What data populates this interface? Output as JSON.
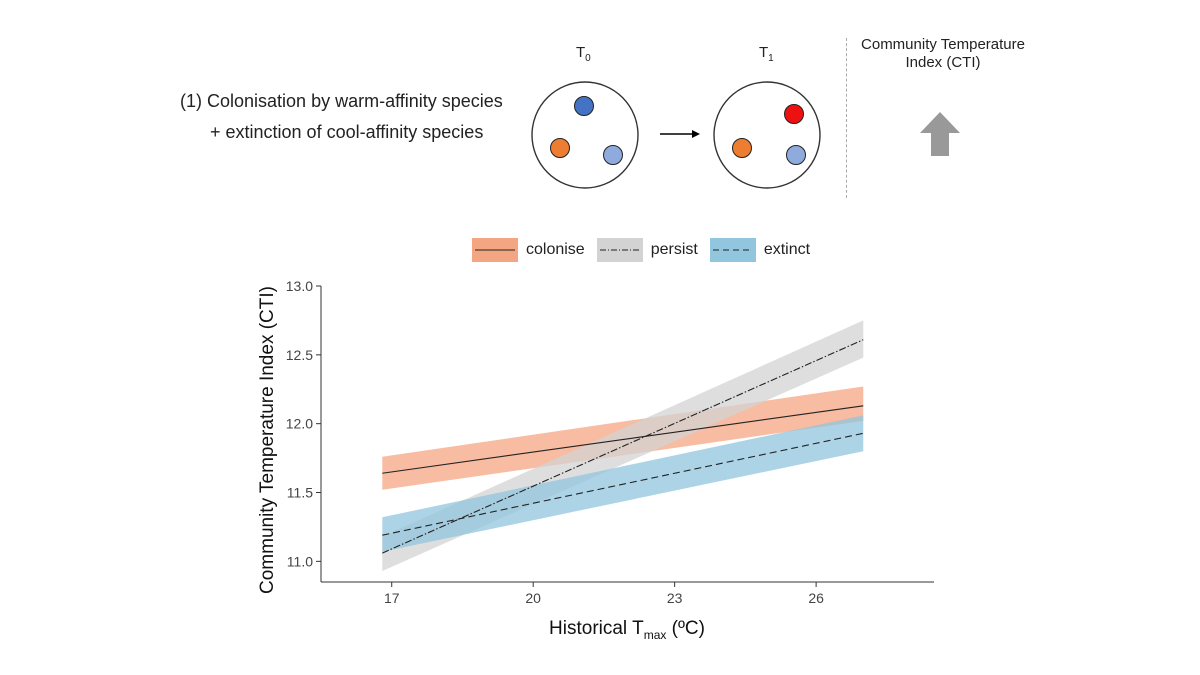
{
  "diagram": {
    "scenario_line1": "(1) Colonisation by warm-affinity species",
    "scenario_line2": "+ extinction of cool-affinity species",
    "t0_label": "T",
    "t0_sub": "0",
    "t1_label": "T",
    "t1_sub": "1",
    "cti_title_line1": "Community Temperature",
    "cti_title_line2": "Index (CTI)",
    "cti_direction": "up-arrow-icon",
    "community_t0": [
      {
        "species": "cool-affinity",
        "color": "#4472c4"
      },
      {
        "species": "mid-affinity",
        "color": "#ed7d31"
      },
      {
        "species": "cool-affinity",
        "color": "#8faadc"
      }
    ],
    "community_t1": [
      {
        "species": "warm-affinity",
        "color": "#ee1111"
      },
      {
        "species": "mid-affinity",
        "color": "#ed7d31"
      },
      {
        "species": "cool-affinity",
        "color": "#8faadc"
      }
    ],
    "arrow_color": "#999999"
  },
  "chart_data": {
    "type": "line",
    "title": "",
    "xlabel": "Historical T",
    "xlabel_sub": "max",
    "xlabel_unit": " (ºC)",
    "ylabel": "Community Temperature Index (CTI)",
    "xlim": [
      15.5,
      28.5
    ],
    "ylim": [
      10.85,
      13.0
    ],
    "x_ticks": [
      17,
      20,
      23,
      26
    ],
    "x_tick_labels": [
      "17",
      "20",
      "23",
      "26"
    ],
    "y_ticks": [
      11.0,
      11.5,
      12.0,
      12.5,
      13.0
    ],
    "y_tick_labels": [
      "11.0",
      "11.5",
      "12.0",
      "12.5",
      "13.0"
    ],
    "grid": false,
    "legend_position": "top",
    "series": [
      {
        "name": "colonise",
        "line_style": "solid",
        "band_color": "#f4a582",
        "x": [
          16.8,
          27.0
        ],
        "y": [
          11.64,
          12.13
        ],
        "lower": [
          11.52,
          12.02
        ],
        "upper": [
          11.76,
          12.27
        ]
      },
      {
        "name": "persist",
        "line_style": "dotdash",
        "band_color": "#d3d3d3",
        "x": [
          16.8,
          27.0
        ],
        "y": [
          11.06,
          12.61
        ],
        "lower": [
          10.93,
          12.48
        ],
        "upper": [
          11.18,
          12.75
        ]
      },
      {
        "name": "extinct",
        "line_style": "dashed",
        "band_color": "#92c5de",
        "x": [
          16.8,
          27.0
        ],
        "y": [
          11.19,
          11.93
        ],
        "lower": [
          11.07,
          11.8
        ],
        "upper": [
          11.32,
          12.06
        ]
      }
    ]
  }
}
